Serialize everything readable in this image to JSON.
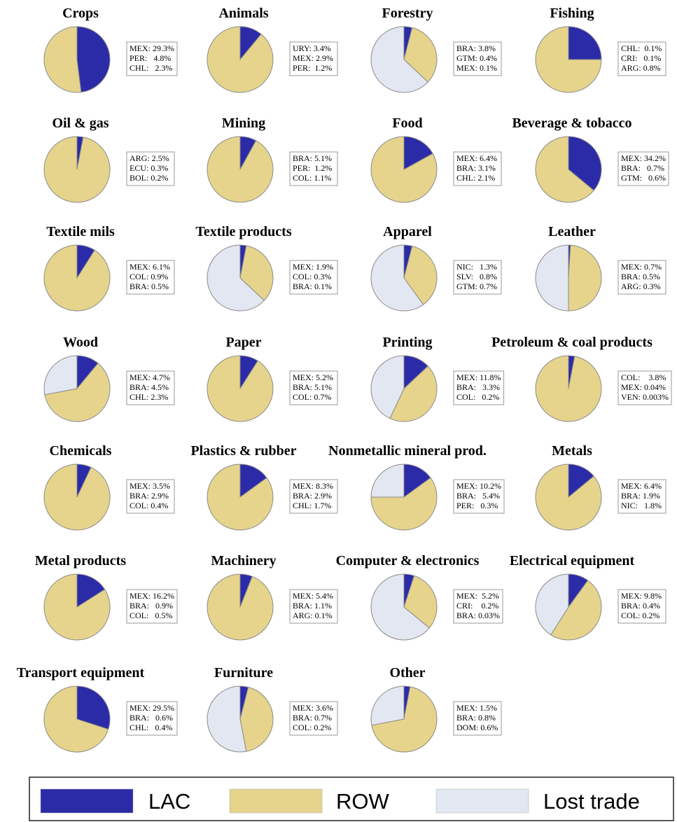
{
  "chart_data": [
    {
      "type": "pie",
      "title": "Crops",
      "values": [
        48,
        52,
        0
      ],
      "box": [
        "MEX: 29.3%",
        "PER:   4.8%",
        "CHL:   2.3%"
      ]
    },
    {
      "type": "pie",
      "title": "Animals",
      "values": [
        11,
        89,
        0
      ],
      "box": [
        "URY: 3.4%",
        "MEX: 2.9%",
        "PER:  1.2%"
      ]
    },
    {
      "type": "pie",
      "title": "Forestry",
      "values": [
        4,
        33,
        63
      ],
      "box": [
        "BRA: 3.8%",
        "GTM: 0.4%",
        "MEX: 0.1%"
      ]
    },
    {
      "type": "pie",
      "title": "Fishing",
      "values": [
        25,
        75,
        0
      ],
      "box": [
        "CHL:  0.1%",
        "CRI:   0.1%",
        "ARG: 0.8%"
      ]
    },
    {
      "type": "pie",
      "title": "Oil & gas",
      "values": [
        3,
        97,
        0
      ],
      "box": [
        "ARG: 2.5%",
        "ECU: 0.3%",
        "BOL: 0.2%"
      ]
    },
    {
      "type": "pie",
      "title": "Mining",
      "values": [
        8,
        92,
        0
      ],
      "box": [
        "BRA: 5.1%",
        "PER:  1.2%",
        "COL: 1.1%"
      ]
    },
    {
      "type": "pie",
      "title": "Food",
      "values": [
        17,
        83,
        0
      ],
      "box": [
        "MEX: 6.4%",
        "BRA: 3.1%",
        "CHL: 2.1%"
      ]
    },
    {
      "type": "pie",
      "title": "Beverage & tobacco",
      "values": [
        36,
        64,
        0
      ],
      "box": [
        "MEX: 34.2%",
        "BRA:   0.7%",
        "GTM:   0.6%"
      ]
    },
    {
      "type": "pie",
      "title": "Textile mils",
      "values": [
        9,
        91,
        0
      ],
      "box": [
        "MEX: 6.1%",
        "COL: 0.9%",
        "BRA: 0.5%"
      ]
    },
    {
      "type": "pie",
      "title": "Textile products",
      "values": [
        3,
        34,
        63
      ],
      "box": [
        "MEX: 1.9%",
        "COL: 0.3%",
        "BRA: 0.1%"
      ]
    },
    {
      "type": "pie",
      "title": "Apparel",
      "values": [
        4,
        36,
        60
      ],
      "box": [
        "NIC:   1.3%",
        "SLV:   0.8%",
        "GTM: 0.7%"
      ]
    },
    {
      "type": "pie",
      "title": "Leather",
      "values": [
        1,
        49,
        50
      ],
      "box": [
        "MEX: 0.7%",
        "BRA: 0.5%",
        "ARG: 0.3%"
      ]
    },
    {
      "type": "pie",
      "title": "Wood",
      "values": [
        11,
        61,
        28
      ],
      "box": [
        "MEX: 4.7%",
        "BRA: 4.5%",
        "CHL: 2.3%"
      ]
    },
    {
      "type": "pie",
      "title": "Paper",
      "values": [
        9,
        91,
        0
      ],
      "box": [
        "MEX: 5.2%",
        "BRA: 5.1%",
        "COL: 0.7%"
      ]
    },
    {
      "type": "pie",
      "title": "Printing",
      "values": [
        13,
        44,
        43
      ],
      "box": [
        "MEX: 11.8%",
        "BRA:   3.3%",
        "COL:   0.2%"
      ]
    },
    {
      "type": "pie",
      "title": "Petroleum & coal products",
      "values": [
        3,
        97,
        0
      ],
      "box": [
        "COL:    3.8%",
        "MEX: 0.04%",
        "VEN: 0.003%"
      ]
    },
    {
      "type": "pie",
      "title": "Chemicals",
      "values": [
        7,
        93,
        0
      ],
      "box": [
        "MEX: 3.5%",
        "BRA: 2.9%",
        "COL: 0.4%"
      ]
    },
    {
      "type": "pie",
      "title": "Plastics & rubber",
      "values": [
        15,
        85,
        0
      ],
      "box": [
        "MEX: 8.3%",
        "BRA: 2.9%",
        "CHL: 1.7%"
      ]
    },
    {
      "type": "pie",
      "title": "Nonmetallic mineral prod.",
      "values": [
        15,
        60,
        25
      ],
      "box": [
        "MEX: 10.2%",
        "BRA:   5.4%",
        "PER:   0.3%"
      ]
    },
    {
      "type": "pie",
      "title": "Metals",
      "values": [
        14,
        86,
        0
      ],
      "box": [
        "MEX: 6.4%",
        "BRA: 1.9%",
        "NIC:   1.8%"
      ]
    },
    {
      "type": "pie",
      "title": "Metal products",
      "values": [
        16,
        84,
        0
      ],
      "box": [
        "MEX: 16.2%",
        "BRA:   0.9%",
        "COL:   0.5%"
      ]
    },
    {
      "type": "pie",
      "title": "Machinery",
      "values": [
        6,
        94,
        0
      ],
      "box": [
        "MEX: 5.4%",
        "BRA: 1.1%",
        "ARG: 0.1%"
      ]
    },
    {
      "type": "pie",
      "title": "Computer & electronics",
      "values": [
        5,
        31,
        64
      ],
      "box": [
        "MEX:  5.2%",
        "CRI:    0.2%",
        "BRA: 0.03%"
      ]
    },
    {
      "type": "pie",
      "title": "Electrical equipment",
      "values": [
        10,
        49,
        41
      ],
      "box": [
        "MEX: 9.8%",
        "BRA: 0.4%",
        "COL: 0.2%"
      ]
    },
    {
      "type": "pie",
      "title": "Transport equipment",
      "values": [
        30,
        70,
        0
      ],
      "box": [
        "MEX: 29.5%",
        "BRA:   0.6%",
        "CHL:   0.4%"
      ]
    },
    {
      "type": "pie",
      "title": "Furniture",
      "values": [
        4,
        43,
        53
      ],
      "box": [
        "MEX: 3.6%",
        "BRA: 0.7%",
        "COL: 0.2%"
      ]
    },
    {
      "type": "pie",
      "title": "Other",
      "values": [
        3,
        69,
        28
      ],
      "box": [
        "MEX: 1.5%",
        "BRA: 0.8%",
        "DOM: 0.6%"
      ]
    }
  ],
  "legend": [
    {
      "name": "LAC",
      "color": "#2b2ba8"
    },
    {
      "name": "ROW",
      "color": "#e6d48c"
    },
    {
      "name": "Lost trade",
      "color": "#e3e7f1"
    }
  ]
}
